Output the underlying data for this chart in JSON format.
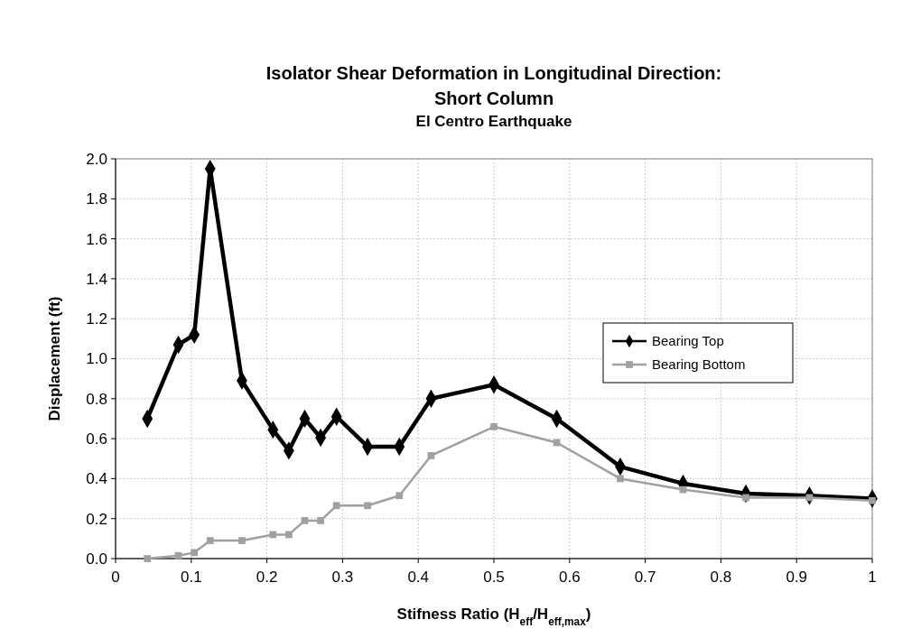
{
  "chart_data": {
    "type": "line",
    "title": "Isolator Shear Deformation in Longitudinal Direction: Short Column",
    "subtitle": "El Centro Earthquake",
    "xlabel": "Stifness Ratio (H$_{eff}$/H$_{eff,max}$)",
    "ylabel": "Displacement (ft)",
    "x": [
      0.042,
      0.083,
      0.104,
      0.125,
      0.167,
      0.208,
      0.229,
      0.25,
      0.271,
      0.292,
      0.333,
      0.375,
      0.417,
      0.5,
      0.583,
      0.667,
      0.75,
      0.833,
      0.917,
      1
    ],
    "series": [
      {
        "name": "Bearing Top",
        "color": "#000000",
        "marker": "diamond",
        "values": [
          0.7,
          1.07,
          1.12,
          1.95,
          0.89,
          0.645,
          0.54,
          0.7,
          0.605,
          0.71,
          0.56,
          0.56,
          0.8,
          0.87,
          0.7,
          0.46,
          0.375,
          0.325,
          0.315,
          0.3
        ]
      },
      {
        "name": "Bearing Bottom",
        "color": "#a0a0a0",
        "marker": "square",
        "values": [
          0.0,
          0.015,
          0.03,
          0.09,
          0.09,
          0.12,
          0.12,
          0.19,
          0.19,
          0.265,
          0.265,
          0.315,
          0.515,
          0.66,
          0.58,
          0.4,
          0.345,
          0.305,
          0.305,
          0.29
        ]
      }
    ],
    "xlim": [
      0,
      1
    ],
    "xticks": [
      0,
      0.1,
      0.2,
      0.3,
      0.4,
      0.5,
      0.6,
      0.7,
      0.8,
      0.9,
      1
    ],
    "ylim": [
      0,
      2
    ],
    "yticks": [
      {
        "value": 0,
        "label": "0.0"
      },
      {
        "value": 0.2,
        "label": "0.2"
      },
      {
        "value": 0.4,
        "label": "0.4"
      },
      {
        "value": 0.6,
        "label": "0.6"
      },
      {
        "value": 0.8,
        "label": "0.8"
      },
      {
        "value": 1,
        "label": "1.0"
      },
      {
        "value": 1.2,
        "label": "1.2"
      },
      {
        "value": 1.4,
        "label": "1.4"
      },
      {
        "value": 1.6,
        "label": "1.6"
      },
      {
        "value": 1.8,
        "label": "1.8"
      },
      {
        "value": 2,
        "label": "2.0"
      }
    ],
    "grid": true,
    "legend": "right",
    "line_style": "solid"
  }
}
